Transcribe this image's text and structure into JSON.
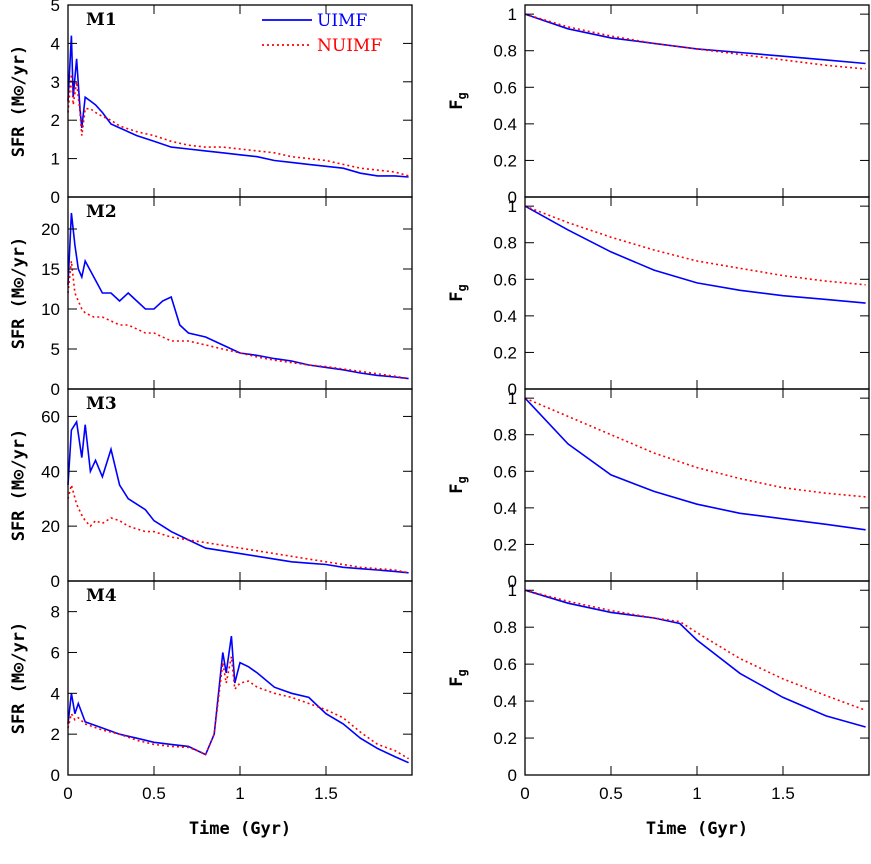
{
  "colors": {
    "uimf": "#0000ff",
    "nuimf": "#ff0000"
  },
  "legend": {
    "uimf": "UIMF",
    "nuimf": "NUIMF"
  },
  "xlabel": "Time (Gyr)",
  "chart_data": [
    {
      "type": "line",
      "panel": "M1",
      "column": "left",
      "ylabel": "SFR (M⊙/yr)",
      "xlim": [
        0,
        2
      ],
      "ylim": [
        0,
        5
      ],
      "yticks": [
        "0",
        "1",
        "2",
        "3",
        "4",
        "5"
      ],
      "xticks": [],
      "x": [
        0,
        0.02,
        0.03,
        0.05,
        0.07,
        0.08,
        0.1,
        0.13,
        0.16,
        0.2,
        0.25,
        0.3,
        0.4,
        0.5,
        0.6,
        0.7,
        0.8,
        0.9,
        1.0,
        1.1,
        1.2,
        1.3,
        1.4,
        1.5,
        1.6,
        1.7,
        1.8,
        1.9,
        1.98
      ],
      "series": [
        {
          "name": "UIMF",
          "style": "solid",
          "values": [
            2.5,
            4.2,
            2.6,
            3.6,
            2.3,
            1.8,
            2.6,
            2.5,
            2.4,
            2.2,
            1.9,
            1.8,
            1.6,
            1.45,
            1.3,
            1.25,
            1.2,
            1.15,
            1.1,
            1.05,
            0.95,
            0.9,
            0.85,
            0.8,
            0.75,
            0.62,
            0.55,
            0.55,
            0.52
          ]
        },
        {
          "name": "NUIMF",
          "style": "dotted",
          "values": [
            2.2,
            3.2,
            2.4,
            3.0,
            2.2,
            1.6,
            2.3,
            2.3,
            2.2,
            2.1,
            2.0,
            1.85,
            1.7,
            1.6,
            1.45,
            1.35,
            1.3,
            1.3,
            1.25,
            1.2,
            1.15,
            1.05,
            1.0,
            0.95,
            0.85,
            0.75,
            0.7,
            0.65,
            0.55
          ]
        }
      ]
    },
    {
      "type": "line",
      "panel": "M1",
      "column": "right",
      "ylabel": "Fg",
      "xlim": [
        0,
        2
      ],
      "ylim": [
        0,
        1.05
      ],
      "yticks": [
        "0",
        "0.2",
        "0.4",
        "0.6",
        "0.8",
        "1"
      ],
      "xticks": [],
      "x": [
        0,
        0.25,
        0.5,
        0.75,
        1.0,
        1.25,
        1.5,
        1.75,
        1.98
      ],
      "series": [
        {
          "name": "UIMF",
          "style": "solid",
          "values": [
            1.0,
            0.92,
            0.87,
            0.84,
            0.81,
            0.79,
            0.77,
            0.75,
            0.73
          ]
        },
        {
          "name": "NUIMF",
          "style": "dotted",
          "values": [
            1.0,
            0.93,
            0.88,
            0.84,
            0.81,
            0.78,
            0.75,
            0.72,
            0.7
          ]
        }
      ]
    },
    {
      "type": "line",
      "panel": "M2",
      "column": "left",
      "ylabel": "SFR (M⊙/yr)",
      "xlim": [
        0,
        2
      ],
      "ylim": [
        0,
        24
      ],
      "yticks": [
        "0",
        "5",
        "10",
        "15",
        "20"
      ],
      "xticks": [],
      "x": [
        0,
        0.02,
        0.04,
        0.06,
        0.08,
        0.1,
        0.15,
        0.2,
        0.25,
        0.3,
        0.35,
        0.4,
        0.45,
        0.5,
        0.55,
        0.6,
        0.65,
        0.7,
        0.8,
        0.9,
        1.0,
        1.1,
        1.2,
        1.3,
        1.4,
        1.5,
        1.6,
        1.7,
        1.8,
        1.9,
        1.98
      ],
      "series": [
        {
          "name": "UIMF",
          "style": "solid",
          "values": [
            13,
            22,
            18,
            15,
            14,
            16,
            14,
            12,
            12,
            11,
            12,
            11,
            10,
            10,
            11,
            11.5,
            8,
            7,
            6.5,
            5.5,
            4.5,
            4.2,
            3.8,
            3.5,
            3.0,
            2.7,
            2.4,
            2.0,
            1.7,
            1.5,
            1.3
          ]
        },
        {
          "name": "NUIMF",
          "style": "dotted",
          "values": [
            12,
            16,
            12,
            11,
            10,
            9.5,
            9,
            9,
            8.5,
            8,
            8,
            7.5,
            7,
            7,
            6.5,
            6,
            6,
            6,
            5.5,
            5.0,
            4.5,
            4.0,
            3.6,
            3.3,
            3.0,
            2.8,
            2.5,
            2.2,
            1.9,
            1.6,
            1.3
          ]
        }
      ]
    },
    {
      "type": "line",
      "panel": "M2",
      "column": "right",
      "ylabel": "Fg",
      "xlim": [
        0,
        2
      ],
      "ylim": [
        0,
        1.05
      ],
      "yticks": [
        "0",
        "0.2",
        "0.4",
        "0.6",
        "0.8",
        "1"
      ],
      "xticks": [],
      "x": [
        0,
        0.25,
        0.5,
        0.75,
        1.0,
        1.25,
        1.5,
        1.75,
        1.98
      ],
      "series": [
        {
          "name": "UIMF",
          "style": "solid",
          "values": [
            1.0,
            0.87,
            0.75,
            0.65,
            0.58,
            0.54,
            0.51,
            0.49,
            0.47
          ]
        },
        {
          "name": "NUIMF",
          "style": "dotted",
          "values": [
            1.0,
            0.91,
            0.83,
            0.76,
            0.7,
            0.66,
            0.62,
            0.59,
            0.57
          ]
        }
      ]
    },
    {
      "type": "line",
      "panel": "M3",
      "column": "left",
      "ylabel": "SFR (M⊙/yr)",
      "xlim": [
        0,
        2
      ],
      "ylim": [
        0,
        70
      ],
      "yticks": [
        "0",
        "20",
        "40",
        "60"
      ],
      "xticks": [],
      "x": [
        0,
        0.02,
        0.05,
        0.08,
        0.1,
        0.13,
        0.16,
        0.2,
        0.25,
        0.3,
        0.35,
        0.4,
        0.45,
        0.5,
        0.55,
        0.6,
        0.7,
        0.8,
        0.9,
        1.0,
        1.1,
        1.2,
        1.3,
        1.4,
        1.5,
        1.6,
        1.7,
        1.8,
        1.9,
        1.98
      ],
      "series": [
        {
          "name": "UIMF",
          "style": "solid",
          "values": [
            35,
            55,
            58,
            45,
            57,
            40,
            44,
            38,
            48,
            35,
            30,
            28,
            26,
            22,
            20,
            18,
            15,
            12,
            11,
            10,
            9,
            8,
            7,
            6.5,
            6,
            5,
            4.5,
            4,
            3.5,
            3
          ]
        },
        {
          "name": "NUIMF",
          "style": "dotted",
          "values": [
            30,
            35,
            28,
            24,
            22,
            20,
            22,
            21,
            23,
            22,
            20,
            19,
            18,
            18,
            17,
            16,
            15,
            14,
            13,
            12,
            11,
            10,
            9,
            8,
            7,
            6,
            5,
            4.5,
            4,
            3
          ]
        }
      ]
    },
    {
      "type": "line",
      "panel": "M3",
      "column": "right",
      "ylabel": "Fg",
      "xlim": [
        0,
        2
      ],
      "ylim": [
        0,
        1.05
      ],
      "yticks": [
        "0",
        "0.2",
        "0.4",
        "0.6",
        "0.8",
        "1"
      ],
      "xticks": [],
      "x": [
        0,
        0.25,
        0.5,
        0.75,
        1.0,
        1.25,
        1.5,
        1.75,
        1.98
      ],
      "series": [
        {
          "name": "UIMF",
          "style": "solid",
          "values": [
            1.0,
            0.75,
            0.58,
            0.49,
            0.42,
            0.37,
            0.34,
            0.31,
            0.28
          ]
        },
        {
          "name": "NUIMF",
          "style": "dotted",
          "values": [
            1.0,
            0.9,
            0.8,
            0.7,
            0.62,
            0.56,
            0.51,
            0.48,
            0.46
          ]
        }
      ]
    },
    {
      "type": "line",
      "panel": "M4",
      "column": "left",
      "ylabel": "SFR (M⊙/yr)",
      "xlim": [
        0,
        2
      ],
      "ylim": [
        0,
        9.5
      ],
      "yticks": [
        "0",
        "2",
        "4",
        "6",
        "8"
      ],
      "xticks": [
        "0",
        "0.5",
        "1",
        "1.5"
      ],
      "x": [
        0,
        0.02,
        0.04,
        0.06,
        0.1,
        0.2,
        0.3,
        0.4,
        0.5,
        0.6,
        0.7,
        0.75,
        0.8,
        0.85,
        0.9,
        0.92,
        0.95,
        0.97,
        1.0,
        1.05,
        1.1,
        1.2,
        1.3,
        1.4,
        1.5,
        1.6,
        1.7,
        1.8,
        1.9,
        1.98
      ],
      "series": [
        {
          "name": "UIMF",
          "style": "solid",
          "values": [
            2.5,
            4.0,
            3.0,
            3.5,
            2.6,
            2.3,
            2.0,
            1.8,
            1.6,
            1.5,
            1.4,
            1.2,
            1.0,
            2.0,
            6.0,
            5.0,
            6.8,
            4.5,
            5.5,
            5.3,
            5.0,
            4.3,
            4.0,
            3.8,
            3.0,
            2.5,
            1.8,
            1.3,
            0.9,
            0.6
          ]
        },
        {
          "name": "NUIMF",
          "style": "dotted",
          "values": [
            2.3,
            3.0,
            2.7,
            2.8,
            2.5,
            2.2,
            2.0,
            1.7,
            1.5,
            1.4,
            1.35,
            1.2,
            1.0,
            2.0,
            5.5,
            4.5,
            5.8,
            4.2,
            4.5,
            4.6,
            4.3,
            4.0,
            3.8,
            3.5,
            3.2,
            2.8,
            2.1,
            1.5,
            1.2,
            0.8
          ]
        }
      ]
    },
    {
      "type": "line",
      "panel": "M4",
      "column": "right",
      "ylabel": "Fg",
      "xlim": [
        0,
        2
      ],
      "ylim": [
        0,
        1.05
      ],
      "yticks": [
        "0",
        "0.2",
        "0.4",
        "0.6",
        "0.8",
        "1"
      ],
      "xticks": [
        "0",
        "0.5",
        "1",
        "1.5"
      ],
      "x": [
        0,
        0.25,
        0.5,
        0.75,
        0.9,
        1.0,
        1.25,
        1.5,
        1.75,
        1.98
      ],
      "series": [
        {
          "name": "UIMF",
          "style": "solid",
          "values": [
            1.0,
            0.93,
            0.88,
            0.85,
            0.82,
            0.73,
            0.55,
            0.42,
            0.32,
            0.26
          ]
        },
        {
          "name": "NUIMF",
          "style": "dotted",
          "values": [
            1.0,
            0.94,
            0.89,
            0.85,
            0.83,
            0.77,
            0.63,
            0.52,
            0.43,
            0.35
          ]
        }
      ]
    }
  ]
}
